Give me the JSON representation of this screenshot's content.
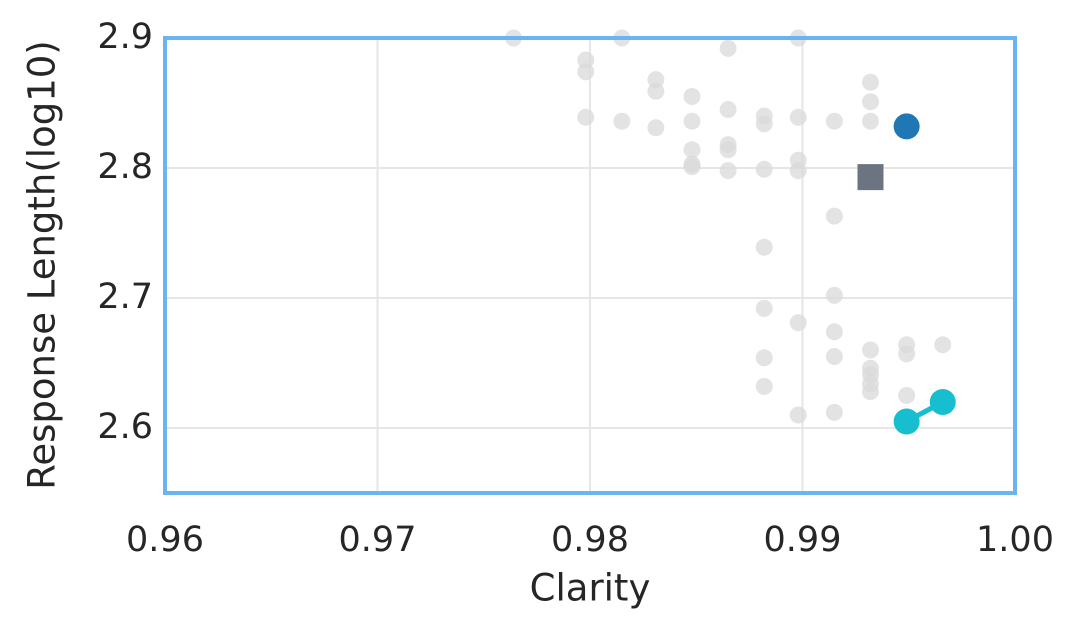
{
  "chart_data": {
    "type": "scatter",
    "xlabel": "Clarity",
    "ylabel": "Response Length(log10)",
    "xlim": [
      0.96,
      1.0
    ],
    "ylim": [
      2.55,
      2.9
    ],
    "xticks": [
      0.96,
      0.97,
      0.98,
      0.99,
      {
        "value": 1.0,
        "label": "1.00"
      }
    ],
    "yticks": [
      2.6,
      2.7,
      2.8,
      2.9
    ],
    "grid": true,
    "frame_color": "#6ab4f0",
    "series": [
      {
        "color": "#d9d9d9",
        "marker": "circle",
        "size": "small",
        "x": [
          0.9764,
          0.9798,
          0.9798,
          0.9815,
          0.9865,
          0.9898,
          0.9831,
          0.9831,
          0.9798,
          0.9815,
          0.9831,
          0.9848,
          0.9848,
          0.9865,
          0.9882,
          0.9882,
          0.9898,
          0.9915,
          0.9932,
          0.9932,
          0.9932,
          0.9848,
          0.9848,
          0.9848,
          0.9865,
          0.9865,
          0.9865,
          0.9882,
          0.9898,
          0.9898,
          0.9915,
          0.9882,
          0.9915,
          0.9882,
          0.9898,
          0.9915,
          0.9882,
          0.9915,
          0.9932,
          0.9949,
          0.9949,
          0.9966,
          0.9932,
          0.9932,
          0.9932,
          0.9932,
          0.9882,
          0.9949,
          0.9898,
          0.9915
        ],
        "values": [
          2.9,
          2.883,
          2.874,
          2.9,
          2.892,
          2.9,
          2.868,
          2.859,
          2.839,
          2.836,
          2.831,
          2.855,
          2.836,
          2.845,
          2.84,
          2.834,
          2.839,
          2.836,
          2.866,
          2.851,
          2.836,
          2.814,
          2.803,
          2.801,
          2.818,
          2.814,
          2.798,
          2.799,
          2.806,
          2.798,
          2.763,
          2.739,
          2.702,
          2.692,
          2.681,
          2.674,
          2.654,
          2.655,
          2.66,
          2.664,
          2.657,
          2.664,
          2.646,
          2.641,
          2.634,
          2.628,
          2.632,
          2.625,
          2.61,
          2.612
        ]
      },
      {
        "color": "#1f77b4",
        "marker": "circle",
        "size": "large",
        "x": [
          0.9949
        ],
        "values": [
          2.832
        ]
      },
      {
        "color": "#6b7480",
        "marker": "square",
        "size": "large",
        "x": [
          0.9932
        ],
        "values": [
          2.793
        ]
      },
      {
        "color": "#17becf",
        "marker": "circle",
        "size": "large",
        "line": true,
        "x": [
          0.9949,
          0.9966
        ],
        "values": [
          2.605,
          2.62
        ]
      }
    ]
  }
}
